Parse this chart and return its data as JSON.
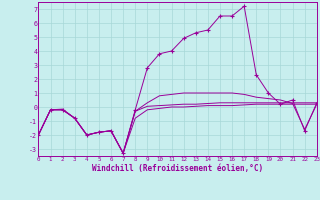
{
  "xlabel": "Windchill (Refroidissement éolien,°C)",
  "bg_color": "#c8eeee",
  "grid_color": "#a8d8d8",
  "line_color": "#990099",
  "xlim": [
    0,
    23
  ],
  "ylim": [
    -3.5,
    7.5
  ],
  "yticks": [
    -3,
    -2,
    -1,
    0,
    1,
    2,
    3,
    4,
    5,
    6,
    7
  ],
  "xticks": [
    0,
    1,
    2,
    3,
    4,
    5,
    6,
    7,
    8,
    9,
    10,
    11,
    12,
    13,
    14,
    15,
    16,
    17,
    18,
    19,
    20,
    21,
    22,
    23
  ],
  "s1_x": [
    0,
    1,
    2,
    3,
    4,
    5,
    6,
    7,
    8,
    9,
    10,
    11,
    12,
    13,
    14,
    15,
    16,
    17,
    18,
    19,
    20,
    21,
    22,
    23
  ],
  "s1_y": [
    -2.0,
    -0.2,
    -0.2,
    -0.8,
    -2.0,
    -1.8,
    -1.7,
    -3.3,
    -0.8,
    -0.2,
    -0.1,
    0.0,
    0.0,
    0.05,
    0.1,
    0.1,
    0.1,
    0.15,
    0.2,
    0.2,
    0.2,
    0.2,
    0.2,
    0.2
  ],
  "s2_x": [
    0,
    1,
    2,
    3,
    4,
    5,
    6,
    7,
    8,
    9,
    10,
    11,
    12,
    13,
    14,
    15,
    16,
    17,
    18,
    19,
    20,
    21,
    22,
    23
  ],
  "s2_y": [
    -2.0,
    -0.2,
    -0.2,
    -0.8,
    -2.0,
    -1.8,
    -1.7,
    -3.3,
    -0.3,
    0.05,
    0.1,
    0.15,
    0.2,
    0.2,
    0.25,
    0.3,
    0.3,
    0.3,
    0.3,
    0.3,
    0.3,
    0.3,
    0.3,
    0.3
  ],
  "s3_x": [
    0,
    1,
    2,
    3,
    4,
    5,
    6,
    7,
    8,
    9,
    10,
    11,
    12,
    13,
    14,
    15,
    16,
    17,
    18,
    19,
    20,
    21,
    22,
    23
  ],
  "s3_y": [
    -2.0,
    -0.2,
    -0.15,
    -0.8,
    -2.0,
    -1.8,
    -1.7,
    -3.3,
    -0.3,
    0.3,
    0.8,
    0.9,
    1.0,
    1.0,
    1.0,
    1.0,
    1.0,
    0.9,
    0.7,
    0.6,
    0.5,
    0.25,
    -1.6,
    0.2
  ],
  "s4_x": [
    0,
    1,
    2,
    3,
    4,
    5,
    6,
    7,
    8,
    9,
    10,
    11,
    12,
    13,
    14,
    15,
    16,
    17,
    18,
    19,
    20,
    21,
    22,
    23
  ],
  "s4_y": [
    -2.0,
    -0.2,
    -0.2,
    -0.8,
    -2.0,
    -1.8,
    -1.7,
    -3.3,
    -0.2,
    2.8,
    3.8,
    4.0,
    4.9,
    5.3,
    5.5,
    6.5,
    6.5,
    7.2,
    2.3,
    1.0,
    0.2,
    0.5,
    -1.7,
    0.3
  ]
}
